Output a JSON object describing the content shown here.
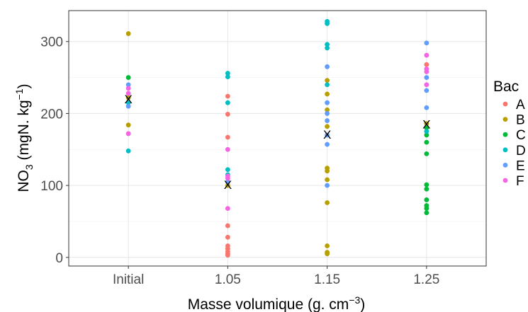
{
  "chart_data": {
    "type": "scatter",
    "title": "",
    "xlabel": "Masse volumique (g. cm",
    "xlabel_sup": "−3",
    "xlabel_end": ")",
    "ylabel_main": "NO",
    "ylabel_sub": "3",
    "ylabel_mid": " (mgN. kg",
    "ylabel_sup": "−1",
    "ylabel_end": ")",
    "categories": [
      "Initial",
      "1.05",
      "1.15",
      "1.25"
    ],
    "ylim": [
      -12,
      343
    ],
    "yticks": [
      0,
      100,
      200,
      300
    ],
    "grid": true,
    "legend": {
      "title": "Bac",
      "position": "right"
    },
    "series": [
      {
        "name": "A",
        "color": "#F8766D",
        "points": [
          {
            "x": "Initial",
            "y": 172
          },
          {
            "x": "1.05",
            "y": 224
          },
          {
            "x": "1.05",
            "y": 199
          },
          {
            "x": "1.05",
            "y": 167
          },
          {
            "x": "1.05",
            "y": 44
          },
          {
            "x": "1.05",
            "y": 28
          },
          {
            "x": "1.05",
            "y": 16
          },
          {
            "x": "1.05",
            "y": 12
          },
          {
            "x": "1.05",
            "y": 8
          },
          {
            "x": "1.05",
            "y": 5
          },
          {
            "x": "1.05",
            "y": 3
          },
          {
            "x": "1.25",
            "y": 268
          }
        ]
      },
      {
        "name": "B",
        "color": "#B79F00",
        "points": [
          {
            "x": "Initial",
            "y": 311
          },
          {
            "x": "Initial",
            "y": 184
          },
          {
            "x": "Initial",
            "y": 222
          },
          {
            "x": "1.05",
            "y": 100
          },
          {
            "x": "1.15",
            "y": 246
          },
          {
            "x": "1.15",
            "y": 227
          },
          {
            "x": "1.15",
            "y": 205
          },
          {
            "x": "1.15",
            "y": 182
          },
          {
            "x": "1.15",
            "y": 124
          },
          {
            "x": "1.15",
            "y": 120
          },
          {
            "x": "1.15",
            "y": 108
          },
          {
            "x": "1.15",
            "y": 76
          },
          {
            "x": "1.15",
            "y": 16
          },
          {
            "x": "1.15",
            "y": 7
          },
          {
            "x": "1.15",
            "y": 5
          },
          {
            "x": "1.25",
            "y": 186
          }
        ]
      },
      {
        "name": "C",
        "color": "#00BA38",
        "points": [
          {
            "x": "Initial",
            "y": 250
          },
          {
            "x": "1.25",
            "y": 180
          },
          {
            "x": "1.25",
            "y": 170
          },
          {
            "x": "1.25",
            "y": 160
          },
          {
            "x": "1.25",
            "y": 144
          },
          {
            "x": "1.25",
            "y": 101
          },
          {
            "x": "1.25",
            "y": 95
          },
          {
            "x": "1.25",
            "y": 80
          },
          {
            "x": "1.25",
            "y": 72
          },
          {
            "x": "1.25",
            "y": 68
          },
          {
            "x": "1.25",
            "y": 62
          }
        ]
      },
      {
        "name": "D",
        "color": "#00BFC4",
        "points": [
          {
            "x": "Initial",
            "y": 215
          },
          {
            "x": "Initial",
            "y": 148
          },
          {
            "x": "1.05",
            "y": 256
          },
          {
            "x": "1.05",
            "y": 251
          },
          {
            "x": "1.05",
            "y": 215
          },
          {
            "x": "1.05",
            "y": 122
          },
          {
            "x": "1.05",
            "y": 115
          },
          {
            "x": "1.15",
            "y": 328
          },
          {
            "x": "1.15",
            "y": 325
          },
          {
            "x": "1.15",
            "y": 296
          },
          {
            "x": "1.15",
            "y": 291
          },
          {
            "x": "1.15",
            "y": 240
          },
          {
            "x": "1.25",
            "y": 175
          }
        ]
      },
      {
        "name": "E",
        "color": "#619CFF",
        "points": [
          {
            "x": "Initial",
            "y": 210
          },
          {
            "x": "Initial",
            "y": 240
          },
          {
            "x": "1.05",
            "y": 105
          },
          {
            "x": "1.15",
            "y": 265
          },
          {
            "x": "1.15",
            "y": 215
          },
          {
            "x": "1.15",
            "y": 200
          },
          {
            "x": "1.15",
            "y": 190
          },
          {
            "x": "1.15",
            "y": 170
          },
          {
            "x": "1.15",
            "y": 157
          },
          {
            "x": "1.15",
            "y": 100
          },
          {
            "x": "1.25",
            "y": 298
          },
          {
            "x": "1.25",
            "y": 250
          },
          {
            "x": "1.25",
            "y": 232
          },
          {
            "x": "1.25",
            "y": 208
          }
        ]
      },
      {
        "name": "F",
        "color": "#F564E3",
        "points": [
          {
            "x": "Initial",
            "y": 235
          },
          {
            "x": "Initial",
            "y": 228
          },
          {
            "x": "Initial",
            "y": 172
          },
          {
            "x": "1.05",
            "y": 150
          },
          {
            "x": "1.05",
            "y": 113
          },
          {
            "x": "1.05",
            "y": 110
          },
          {
            "x": "1.05",
            "y": 68
          },
          {
            "x": "1.25",
            "y": 281
          },
          {
            "x": "1.25",
            "y": 262
          },
          {
            "x": "1.25",
            "y": 258
          },
          {
            "x": "1.25",
            "y": 240
          }
        ]
      }
    ],
    "means": [
      {
        "x": "Initial",
        "y": 220
      },
      {
        "x": "1.05",
        "y": 101
      },
      {
        "x": "1.15",
        "y": 171
      },
      {
        "x": "1.25",
        "y": 185
      }
    ],
    "mean_marker": "X",
    "mean_color": "#000000"
  }
}
